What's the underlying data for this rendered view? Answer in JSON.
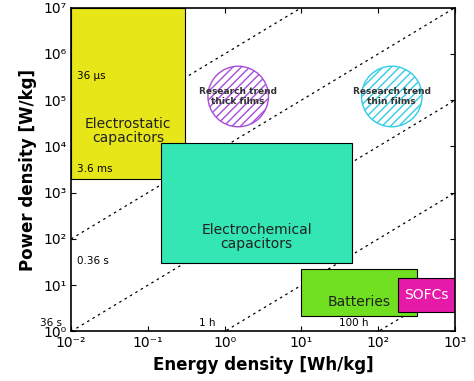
{
  "chart_data": {
    "type": "ragone",
    "x_label": "Energy density [Wh/kg]",
    "y_label": "Power density [W/kg]",
    "log": true,
    "xlim": [
      0.01,
      1000
    ],
    "ylim": [
      1,
      10000000
    ],
    "xticks": [
      {
        "value": 0.01,
        "label": "10⁻²"
      },
      {
        "value": 0.1,
        "label": "10⁻¹"
      },
      {
        "value": 1,
        "label": "10⁰"
      },
      {
        "value": 10,
        "label": "10¹"
      },
      {
        "value": 100,
        "label": "10²"
      },
      {
        "value": 1000,
        "label": "10³"
      }
    ],
    "yticks": [
      {
        "value": 1,
        "label": "10⁰"
      },
      {
        "value": 10,
        "label": "10¹"
      },
      {
        "value": 100,
        "label": "10²"
      },
      {
        "value": 1000,
        "label": "10³"
      },
      {
        "value": 10000,
        "label": "10⁴"
      },
      {
        "value": 100000,
        "label": "10⁵"
      },
      {
        "value": 1000000,
        "label": "10⁶"
      },
      {
        "value": 10000000,
        "label": "10⁷"
      }
    ],
    "regions": [
      {
        "name": "Electrostatic\ncapacitors",
        "color": "#e6e619",
        "energy": [
          0.01,
          0.3
        ],
        "power": [
          2000,
          10000000
        ]
      },
      {
        "name": "Electrochemical\ncapacitors",
        "color": "#33e6b3",
        "energy": [
          0.15,
          45
        ],
        "power": [
          30,
          12000
        ]
      },
      {
        "name": "Batteries",
        "color": "#70e020",
        "energy": [
          10,
          320
        ],
        "power": [
          2.2,
          22
        ]
      },
      {
        "name": "SOFCs",
        "color": "#e61aa8",
        "energy": [
          180,
          1000
        ],
        "power": [
          2.6,
          14
        ]
      }
    ],
    "trends": [
      {
        "name": "Research trend\nthick films",
        "color": "#a64dd9",
        "energy": 1.5,
        "power": 120000
      },
      {
        "name": "Research trend\nthin films",
        "color": "#33cce6",
        "energy": 150,
        "power": 120000
      }
    ],
    "time_lines": [
      {
        "label": "36 µs",
        "hours": 1e-08
      },
      {
        "label": "3.6 ms",
        "hours": 1e-06
      },
      {
        "label": "0.36 s",
        "hours": 0.0001
      },
      {
        "label": "36 s",
        "hours": 0.01
      },
      {
        "label": "1 h",
        "hours": 1
      },
      {
        "label": "100 h",
        "hours": 100
      }
    ]
  }
}
